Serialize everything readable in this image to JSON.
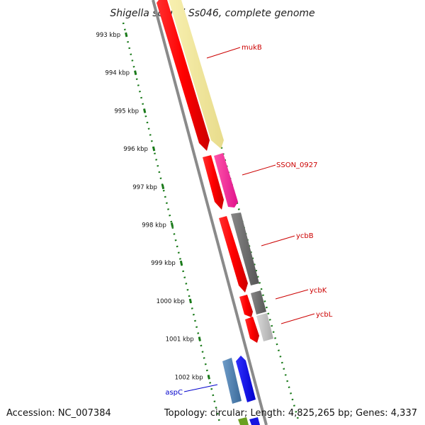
{
  "title": "Shigella sonnei Ss046, complete genome",
  "accession": "Accession: NC_007384",
  "summary": "Topology: circular; Length: 4,825,265 bp; Genes: 4,337",
  "colors": {
    "backbone": "#8a8a8a",
    "scale_dots": "#1a7a1a",
    "label_red": "#cc0000",
    "label_blue": "#0000cc"
  },
  "scale_ticks": [
    {
      "label": "993 kbp"
    },
    {
      "label": "994 kbp"
    },
    {
      "label": "995 kbp"
    },
    {
      "label": "996 kbp"
    },
    {
      "label": "997 kbp"
    },
    {
      "label": "998 kbp"
    },
    {
      "label": "999 kbp"
    },
    {
      "label": "1000 kbp"
    },
    {
      "label": "1001 kbp"
    },
    {
      "label": "1002 kbp"
    }
  ],
  "gene_labels": [
    {
      "name": "mukB",
      "color": "#cc0000"
    },
    {
      "name": "SSON_0927",
      "color": "#cc0000"
    },
    {
      "name": "ycbB",
      "color": "#cc0000"
    },
    {
      "name": "ycbK",
      "color": "#cc0000"
    },
    {
      "name": "ycbL",
      "color": "#cc0000"
    },
    {
      "name": "aspC",
      "color": "#0000cc"
    }
  ]
}
